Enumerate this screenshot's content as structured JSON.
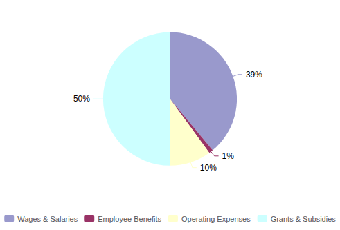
{
  "chart_data": {
    "type": "pie",
    "categories": [
      "Wages & Salaries",
      "Employee Benefits",
      "Operating Expenses",
      "Grants & Subsidies"
    ],
    "values": [
      39,
      1,
      10,
      50
    ],
    "value_labels": [
      "39%",
      "1%",
      "10%",
      "50%"
    ],
    "colors": [
      "#9999cc",
      "#993366",
      "#ffffcc",
      "#ccffff"
    ],
    "data_labels": true,
    "legend": "bottom"
  }
}
